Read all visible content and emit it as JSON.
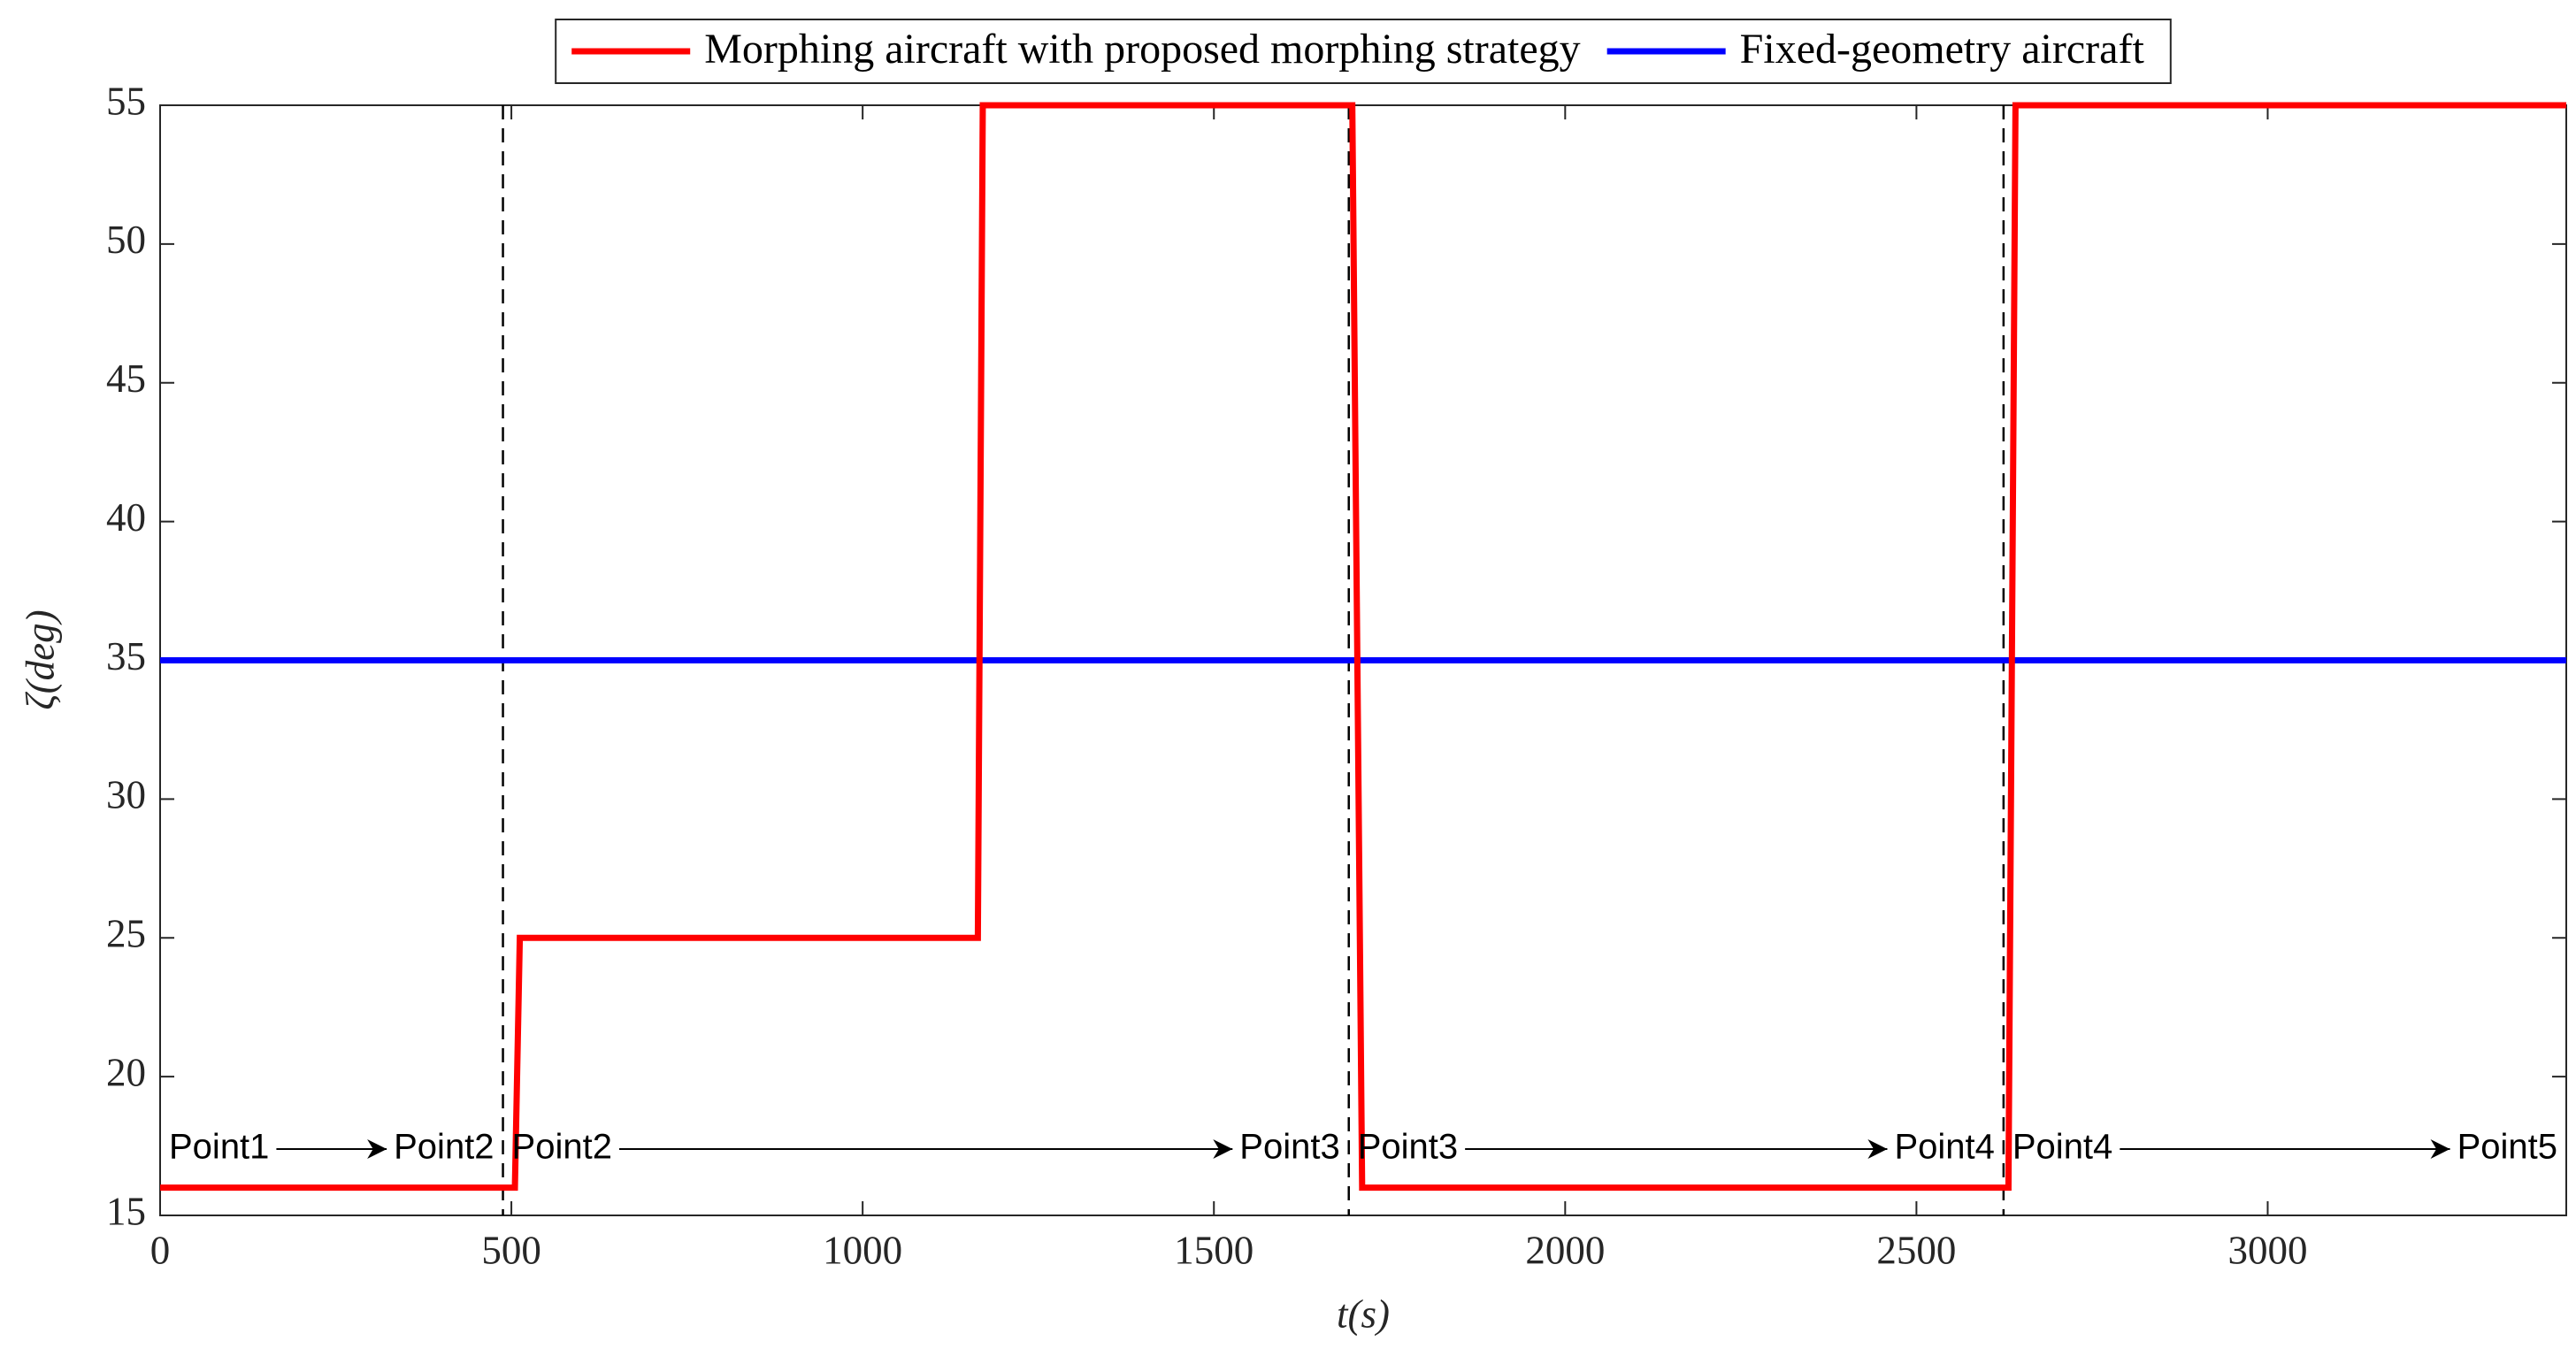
{
  "chart_data": {
    "type": "line",
    "x_label": "t(s)",
    "y_label": "ζ(deg)",
    "xlim": [
      0,
      3425
    ],
    "ylim": [
      15,
      55
    ],
    "xticks": [
      0,
      500,
      1000,
      1500,
      2000,
      2500,
      3000
    ],
    "yticks": [
      15,
      20,
      25,
      30,
      35,
      40,
      45,
      50,
      55
    ],
    "grid": false,
    "legend": "north",
    "series": [
      {
        "name": "Morphing aircraft with proposed morphing strategy",
        "color": "#ff0000",
        "x": [
          0,
          505,
          512,
          1164,
          1171,
          1697,
          1711,
          2631,
          2641,
          3425
        ],
        "values": [
          16,
          16,
          25,
          25,
          55,
          55,
          16,
          16,
          55,
          55
        ]
      },
      {
        "name": "Fixed-geometry aircraft",
        "color": "#0000ff",
        "x": [
          0,
          3425
        ],
        "values": [
          35,
          35
        ]
      }
    ],
    "vlines": [
      488,
      1692,
      2624
    ],
    "annotations": [
      {
        "from": "Point1",
        "to": "Point2"
      },
      {
        "from": "Point2",
        "to": "Point3"
      },
      {
        "from": "Point3",
        "to": "Point4"
      },
      {
        "from": "Point4",
        "to": "Point5"
      }
    ]
  }
}
